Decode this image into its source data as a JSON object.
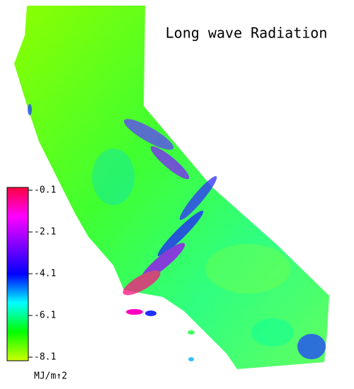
{
  "title": "Long wave Radiation",
  "colorbar": {
    "lim": [
      -8.1,
      -0.1
    ],
    "ticks": [
      -0.1,
      -2.1,
      -4.1,
      -6.1,
      -8.1
    ],
    "unit": "MJ/m↑2",
    "colors": [
      "#ff0040",
      "#ff00ff",
      "#8000ff",
      "#0000ff",
      "#00ffff",
      "#00ff00",
      "#ccff00"
    ]
  }
}
